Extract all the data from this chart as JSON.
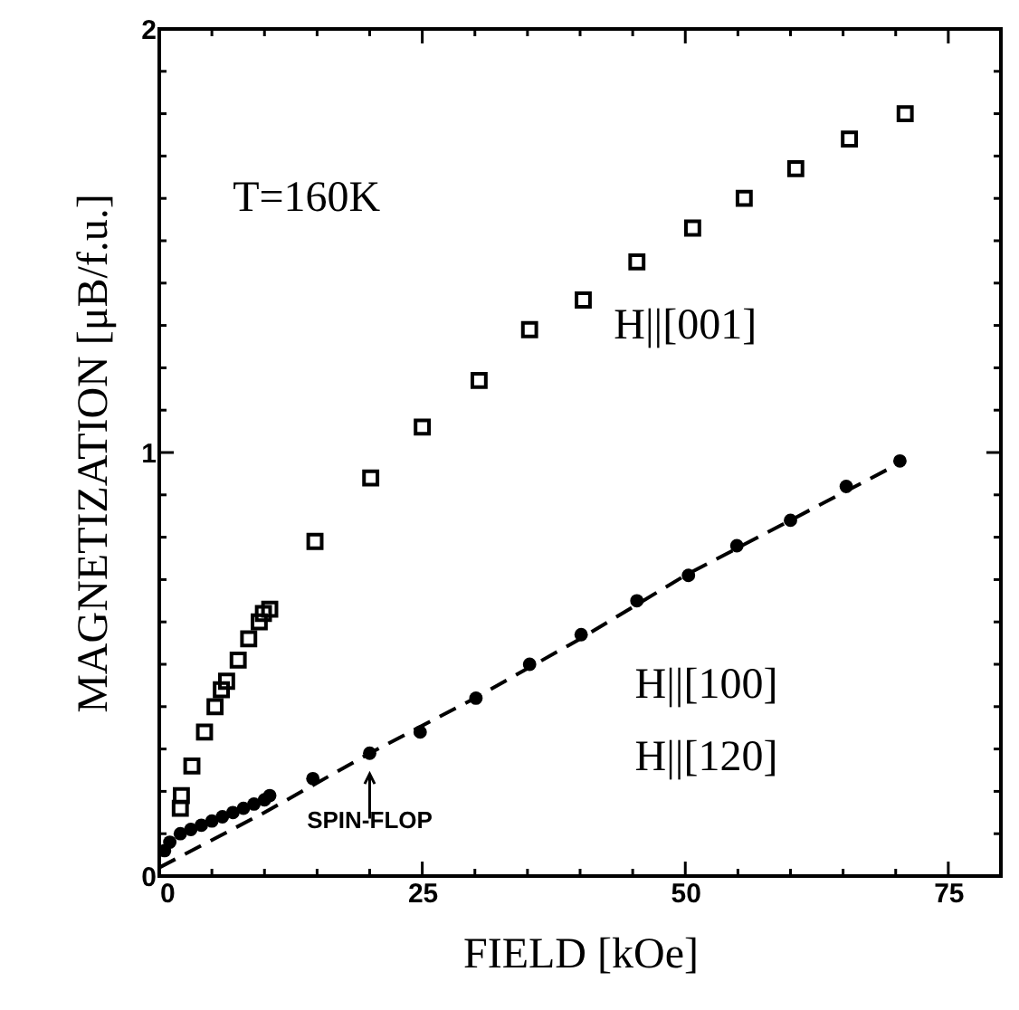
{
  "chart_data": {
    "type": "scatter",
    "xlabel": "FIELD [kOe]",
    "ylabel": "MAGNETIZATION [μB/f.u.]",
    "xlim": [
      0,
      80
    ],
    "xticks": [
      0,
      {
        "value": 5,
        "label": null
      },
      {
        "value": 10,
        "label": null
      },
      {
        "value": 15,
        "label": null
      },
      {
        "value": 20,
        "label": null
      },
      25,
      {
        "value": 30,
        "label": null
      },
      {
        "value": 35,
        "label": null
      },
      {
        "value": 40,
        "label": null
      },
      {
        "value": 45,
        "label": null
      },
      50,
      {
        "value": 55,
        "label": null
      },
      {
        "value": 60,
        "label": null
      },
      {
        "value": 65,
        "label": null
      },
      {
        "value": 70,
        "label": null
      },
      75
    ],
    "ylim": [
      0,
      2
    ],
    "yticks": [
      0,
      {
        "value": 0.1,
        "label": null
      },
      {
        "value": 0.2,
        "label": null
      },
      {
        "value": 0.3,
        "label": null
      },
      {
        "value": 0.4,
        "label": null
      },
      {
        "value": 0.5,
        "label": null
      },
      {
        "value": 0.6,
        "label": null
      },
      {
        "value": 0.7,
        "label": null
      },
      {
        "value": 0.8,
        "label": null
      },
      {
        "value": 0.9,
        "label": null
      },
      1,
      {
        "value": 1.1,
        "label": null
      },
      {
        "value": 1.2,
        "label": null
      },
      {
        "value": 1.3,
        "label": null
      },
      {
        "value": 1.4,
        "label": null
      },
      {
        "value": 1.5,
        "label": null
      },
      {
        "value": 1.6,
        "label": null
      },
      {
        "value": 1.7,
        "label": null
      },
      {
        "value": 1.8,
        "label": null
      },
      {
        "value": 1.9,
        "label": null
      },
      2
    ],
    "grid": false,
    "series": [
      {
        "marker": "square",
        "color": "#000000",
        "x": [
          2.0,
          2.1,
          3.1,
          4.3,
          5.3,
          5.9,
          6.4,
          7.5,
          8.5,
          9.5,
          9.9,
          10.5,
          14.8,
          20.1,
          25,
          30.4,
          35.2,
          40.3,
          45.4,
          50.7,
          55.6,
          60.5,
          65.6,
          70.9
        ],
        "values": [
          0.16,
          0.19,
          0.26,
          0.34,
          0.4,
          0.44,
          0.46,
          0.51,
          0.56,
          0.6,
          0.62,
          0.63,
          0.79,
          0.94,
          1.06,
          1.17,
          1.29,
          1.36,
          1.45,
          1.53,
          1.6,
          1.67,
          1.74,
          1.8
        ]
      },
      {
        "marker": "circle",
        "color": "#000000",
        "x": [
          0.5,
          1,
          2,
          3,
          4,
          5,
          6,
          7,
          8,
          9,
          10,
          10.5,
          14.6,
          20,
          24.8,
          30.1,
          35.2,
          40.1,
          45.4,
          50.3,
          54.9,
          60,
          65.3,
          70.4
        ],
        "values": [
          0.06,
          0.08,
          0.1,
          0.11,
          0.12,
          0.13,
          0.14,
          0.15,
          0.16,
          0.17,
          0.18,
          0.19,
          0.23,
          0.29,
          0.34,
          0.42,
          0.5,
          0.57,
          0.65,
          0.71,
          0.78,
          0.84,
          0.92,
          0.98
        ]
      },
      {
        "type": "line",
        "line_style": "dashed",
        "marker": "none",
        "color": "#000000",
        "x": [
          0,
          10,
          20,
          30,
          40,
          50,
          60,
          70
        ],
        "values": [
          0.02,
          0.15,
          0.29,
          0.42,
          0.56,
          0.71,
          0.84,
          0.97
        ]
      }
    ],
    "annotations": [
      "T=160K",
      "H||[001]",
      "H||[100]",
      "H||[120]",
      "SPIN-FLOP"
    ]
  }
}
